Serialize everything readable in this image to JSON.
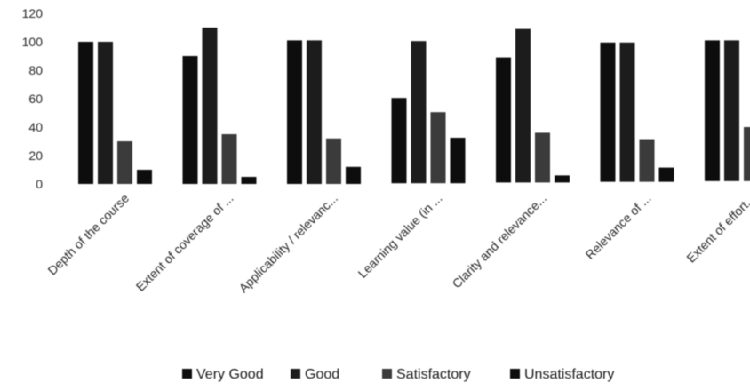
{
  "chart_data": {
    "type": "bar",
    "title": "",
    "xlabel": "",
    "ylabel": "",
    "ylim": [
      0,
      120
    ],
    "yticks": [
      0,
      20,
      40,
      60,
      80,
      100,
      120
    ],
    "grid": false,
    "legend_position": "bottom",
    "categories": [
      "Depth of the course",
      "Extent of coverage of ...",
      "Applicability / relevanc...",
      "Learning value (in ...",
      "Clarity and relevance...",
      "Relevance of ...",
      "Extent of effort..."
    ],
    "series": [
      {
        "name": "Very Good",
        "color": "#111111",
        "values": [
          100,
          90,
          101,
          60,
          88,
          98,
          99
        ]
      },
      {
        "name": "Good",
        "color": "#1c1c1c",
        "values": [
          100,
          110,
          101,
          100,
          108,
          98,
          99
        ]
      },
      {
        "name": "Satisfactory",
        "color": "#3a3a3a",
        "values": [
          30,
          35,
          32,
          50,
          35,
          30,
          38
        ]
      },
      {
        "name": "Unsatisfactory",
        "color": "#111111",
        "values": [
          10,
          5,
          12,
          32,
          5,
          10,
          null
        ]
      }
    ]
  }
}
